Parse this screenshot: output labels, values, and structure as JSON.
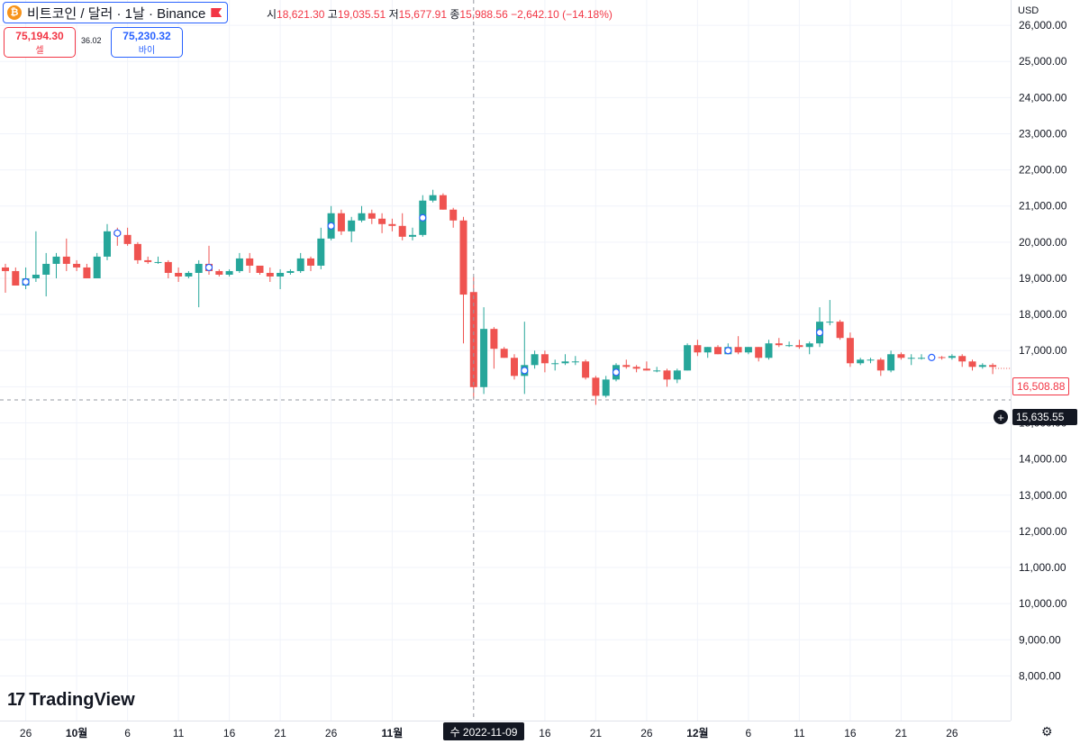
{
  "header": {
    "symbol": "비트코인 / 달러 · 1날 · Binance",
    "currency": "USD",
    "ohlc": {
      "open_label": "시",
      "open": "18,621.30",
      "high_label": "고",
      "high": "19,035.51",
      "low_label": "저",
      "low": "15,677.91",
      "close_label": "종",
      "close": "15,988.56",
      "change": "−2,642.10 (−14.18%)"
    }
  },
  "trade": {
    "sell_price": "75,194.30",
    "sell_label": "셀",
    "buy_price": "75,230.32",
    "buy_label": "바이",
    "spread": "36.02"
  },
  "branding": {
    "logo_mark": "17",
    "name": "TradingView"
  },
  "crosshair": {
    "date_label": "수 2022-11-09",
    "price_label": "15,635.55",
    "price_value": 15635.55,
    "date": "2022-11-09"
  },
  "last_price": {
    "label": "16,508.88",
    "value": 16508.88
  },
  "colors": {
    "up": "#26a69a",
    "down": "#ef5350",
    "grid": "#f0f3fa",
    "crosshair": "#9598a1",
    "marker": "#2962ff"
  },
  "chart_data": {
    "type": "candlestick",
    "ylim": [
      7600,
      26600
    ],
    "xlim": [
      "2022-09-24",
      "2022-12-31"
    ],
    "grid": true,
    "y_ticks": [
      "26,000.00",
      "25,000.00",
      "24,000.00",
      "23,000.00",
      "22,000.00",
      "21,000.00",
      "20,000.00",
      "19,000.00",
      "18,000.00",
      "17,000.00",
      "16,000.00",
      "15,000.00",
      "14,000.00",
      "13,000.00",
      "12,000.00",
      "11,000.00",
      "10,000.00",
      "9,000.00",
      "8,000.00"
    ],
    "y_tick_values": [
      26000,
      25000,
      24000,
      23000,
      22000,
      21000,
      20000,
      19000,
      18000,
      17000,
      16000,
      15000,
      14000,
      13000,
      12000,
      11000,
      10000,
      9000,
      8000
    ],
    "x_ticks": [
      {
        "label": "26",
        "date": "2022-09-26",
        "bold": false
      },
      {
        "label": "10월",
        "date": "2022-10-01",
        "bold": true
      },
      {
        "label": "6",
        "date": "2022-10-06",
        "bold": false
      },
      {
        "label": "11",
        "date": "2022-10-11",
        "bold": false
      },
      {
        "label": "16",
        "date": "2022-10-16",
        "bold": false
      },
      {
        "label": "21",
        "date": "2022-10-21",
        "bold": false
      },
      {
        "label": "26",
        "date": "2022-10-26",
        "bold": false
      },
      {
        "label": "11월",
        "date": "2022-11-01",
        "bold": true
      },
      {
        "label": "16",
        "date": "2022-11-16",
        "bold": false
      },
      {
        "label": "21",
        "date": "2022-11-21",
        "bold": false
      },
      {
        "label": "26",
        "date": "2022-11-26",
        "bold": false
      },
      {
        "label": "12월",
        "date": "2022-12-01",
        "bold": true
      },
      {
        "label": "6",
        "date": "2022-12-06",
        "bold": false
      },
      {
        "label": "11",
        "date": "2022-12-11",
        "bold": false
      },
      {
        "label": "16",
        "date": "2022-12-16",
        "bold": false
      },
      {
        "label": "21",
        "date": "2022-12-21",
        "bold": false
      },
      {
        "label": "26",
        "date": "2022-12-26",
        "bold": false
      }
    ],
    "marker_dates": [
      "2022-09-26",
      "2022-10-05",
      "2022-10-14",
      "2022-10-26",
      "2022-11-04",
      "2022-11-14",
      "2022-11-23",
      "2022-12-04",
      "2022-12-13",
      "2022-12-24"
    ],
    "candles": [
      {
        "date": "2022-09-24",
        "o": 19300,
        "h": 19400,
        "l": 18600,
        "c": 19200
      },
      {
        "date": "2022-09-25",
        "o": 19200,
        "h": 19300,
        "l": 18800,
        "c": 18800
      },
      {
        "date": "2022-09-26",
        "o": 18800,
        "h": 19300,
        "l": 18700,
        "c": 19000
      },
      {
        "date": "2022-09-27",
        "o": 19000,
        "h": 20300,
        "l": 18900,
        "c": 19100
      },
      {
        "date": "2022-09-28",
        "o": 19100,
        "h": 19700,
        "l": 18500,
        "c": 19400
      },
      {
        "date": "2022-09-29",
        "o": 19400,
        "h": 19700,
        "l": 19000,
        "c": 19600
      },
      {
        "date": "2022-09-30",
        "o": 19600,
        "h": 20100,
        "l": 19200,
        "c": 19400
      },
      {
        "date": "2022-10-01",
        "o": 19400,
        "h": 19500,
        "l": 19200,
        "c": 19300
      },
      {
        "date": "2022-10-02",
        "o": 19300,
        "h": 19400,
        "l": 19000,
        "c": 19000
      },
      {
        "date": "2022-10-03",
        "o": 19000,
        "h": 19700,
        "l": 19000,
        "c": 19600
      },
      {
        "date": "2022-10-04",
        "o": 19600,
        "h": 20500,
        "l": 19500,
        "c": 20300
      },
      {
        "date": "2022-10-05",
        "o": 20300,
        "h": 20400,
        "l": 19900,
        "c": 20200
      },
      {
        "date": "2022-10-06",
        "o": 20200,
        "h": 20400,
        "l": 19900,
        "c": 19950
      },
      {
        "date": "2022-10-07",
        "o": 19950,
        "h": 20000,
        "l": 19400,
        "c": 19500
      },
      {
        "date": "2022-10-08",
        "o": 19500,
        "h": 19600,
        "l": 19400,
        "c": 19450
      },
      {
        "date": "2022-10-09",
        "o": 19450,
        "h": 19600,
        "l": 19400,
        "c": 19450
      },
      {
        "date": "2022-10-10",
        "o": 19450,
        "h": 19500,
        "l": 19000,
        "c": 19150
      },
      {
        "date": "2022-10-11",
        "o": 19150,
        "h": 19300,
        "l": 18900,
        "c": 19050
      },
      {
        "date": "2022-10-12",
        "o": 19050,
        "h": 19200,
        "l": 19000,
        "c": 19150
      },
      {
        "date": "2022-10-13",
        "o": 19150,
        "h": 19500,
        "l": 18200,
        "c": 19400
      },
      {
        "date": "2022-10-14",
        "o": 19400,
        "h": 19900,
        "l": 19100,
        "c": 19200
      },
      {
        "date": "2022-10-15",
        "o": 19200,
        "h": 19250,
        "l": 19050,
        "c": 19100
      },
      {
        "date": "2022-10-16",
        "o": 19100,
        "h": 19250,
        "l": 19050,
        "c": 19200
      },
      {
        "date": "2022-10-17",
        "o": 19200,
        "h": 19700,
        "l": 19150,
        "c": 19550
      },
      {
        "date": "2022-10-18",
        "o": 19550,
        "h": 19700,
        "l": 19150,
        "c": 19350
      },
      {
        "date": "2022-10-19",
        "o": 19350,
        "h": 19350,
        "l": 19100,
        "c": 19150
      },
      {
        "date": "2022-10-20",
        "o": 19150,
        "h": 19300,
        "l": 18900,
        "c": 19050
      },
      {
        "date": "2022-10-21",
        "o": 19050,
        "h": 19250,
        "l": 18700,
        "c": 19150
      },
      {
        "date": "2022-10-22",
        "o": 19150,
        "h": 19250,
        "l": 19100,
        "c": 19200
      },
      {
        "date": "2022-10-23",
        "o": 19200,
        "h": 19700,
        "l": 19150,
        "c": 19550
      },
      {
        "date": "2022-10-24",
        "o": 19550,
        "h": 19600,
        "l": 19200,
        "c": 19350
      },
      {
        "date": "2022-10-25",
        "o": 19350,
        "h": 20400,
        "l": 19250,
        "c": 20100
      },
      {
        "date": "2022-10-26",
        "o": 20100,
        "h": 21000,
        "l": 20050,
        "c": 20800
      },
      {
        "date": "2022-10-27",
        "o": 20800,
        "h": 20900,
        "l": 20200,
        "c": 20300
      },
      {
        "date": "2022-10-28",
        "o": 20300,
        "h": 20700,
        "l": 20000,
        "c": 20600
      },
      {
        "date": "2022-10-29",
        "o": 20600,
        "h": 21000,
        "l": 20550,
        "c": 20800
      },
      {
        "date": "2022-10-30",
        "o": 20800,
        "h": 20900,
        "l": 20500,
        "c": 20650
      },
      {
        "date": "2022-10-31",
        "o": 20650,
        "h": 20800,
        "l": 20250,
        "c": 20500
      },
      {
        "date": "2022-11-01",
        "o": 20500,
        "h": 20650,
        "l": 20300,
        "c": 20450
      },
      {
        "date": "2022-11-02",
        "o": 20450,
        "h": 20800,
        "l": 20050,
        "c": 20150
      },
      {
        "date": "2022-11-03",
        "o": 20150,
        "h": 20400,
        "l": 20050,
        "c": 20200
      },
      {
        "date": "2022-11-04",
        "o": 20200,
        "h": 21300,
        "l": 20150,
        "c": 21150
      },
      {
        "date": "2022-11-05",
        "o": 21150,
        "h": 21450,
        "l": 21100,
        "c": 21300
      },
      {
        "date": "2022-11-06",
        "o": 21300,
        "h": 21350,
        "l": 20900,
        "c": 20900
      },
      {
        "date": "2022-11-07",
        "o": 20900,
        "h": 20950,
        "l": 20400,
        "c": 20600
      },
      {
        "date": "2022-11-08",
        "o": 20600,
        "h": 20700,
        "l": 17200,
        "c": 18550
      },
      {
        "date": "2022-11-09",
        "o": 18620,
        "h": 19040,
        "l": 15680,
        "c": 15990
      },
      {
        "date": "2022-11-10",
        "o": 15990,
        "h": 18200,
        "l": 15800,
        "c": 17600
      },
      {
        "date": "2022-11-11",
        "o": 17600,
        "h": 17650,
        "l": 16500,
        "c": 17050
      },
      {
        "date": "2022-11-12",
        "o": 17050,
        "h": 17100,
        "l": 16800,
        "c": 16800
      },
      {
        "date": "2022-11-13",
        "o": 16800,
        "h": 16900,
        "l": 16200,
        "c": 16300
      },
      {
        "date": "2022-11-14",
        "o": 16300,
        "h": 17800,
        "l": 15800,
        "c": 16600
      },
      {
        "date": "2022-11-15",
        "o": 16600,
        "h": 17000,
        "l": 16500,
        "c": 16900
      },
      {
        "date": "2022-11-16",
        "o": 16900,
        "h": 17000,
        "l": 16400,
        "c": 16650
      },
      {
        "date": "2022-11-17",
        "o": 16650,
        "h": 16750,
        "l": 16450,
        "c": 16650
      },
      {
        "date": "2022-11-18",
        "o": 16650,
        "h": 16900,
        "l": 16600,
        "c": 16700
      },
      {
        "date": "2022-11-19",
        "o": 16700,
        "h": 16850,
        "l": 16600,
        "c": 16700
      },
      {
        "date": "2022-11-20",
        "o": 16700,
        "h": 16750,
        "l": 16200,
        "c": 16250
      },
      {
        "date": "2022-11-21",
        "o": 16250,
        "h": 16300,
        "l": 15500,
        "c": 15750
      },
      {
        "date": "2022-11-22",
        "o": 15750,
        "h": 16300,
        "l": 15700,
        "c": 16200
      },
      {
        "date": "2022-11-23",
        "o": 16200,
        "h": 16650,
        "l": 16150,
        "c": 16600
      },
      {
        "date": "2022-11-24",
        "o": 16600,
        "h": 16750,
        "l": 16500,
        "c": 16550
      },
      {
        "date": "2022-11-25",
        "o": 16550,
        "h": 16600,
        "l": 16400,
        "c": 16500
      },
      {
        "date": "2022-11-26",
        "o": 16500,
        "h": 16700,
        "l": 16450,
        "c": 16450
      },
      {
        "date": "2022-11-27",
        "o": 16450,
        "h": 16550,
        "l": 16400,
        "c": 16450
      },
      {
        "date": "2022-11-28",
        "o": 16450,
        "h": 16500,
        "l": 16000,
        "c": 16200
      },
      {
        "date": "2022-11-29",
        "o": 16200,
        "h": 16500,
        "l": 16100,
        "c": 16450
      },
      {
        "date": "2022-11-30",
        "o": 16450,
        "h": 17200,
        "l": 16450,
        "c": 17150
      },
      {
        "date": "2022-12-01",
        "o": 17150,
        "h": 17300,
        "l": 16850,
        "c": 16950
      },
      {
        "date": "2022-12-02",
        "o": 16950,
        "h": 17100,
        "l": 16800,
        "c": 17100
      },
      {
        "date": "2022-12-03",
        "o": 17100,
        "h": 17150,
        "l": 16900,
        "c": 16900
      },
      {
        "date": "2022-12-04",
        "o": 16900,
        "h": 17200,
        "l": 16900,
        "c": 17100
      },
      {
        "date": "2022-12-05",
        "o": 17100,
        "h": 17400,
        "l": 16900,
        "c": 16950
      },
      {
        "date": "2022-12-06",
        "o": 16950,
        "h": 17100,
        "l": 16900,
        "c": 17100
      },
      {
        "date": "2022-12-07",
        "o": 17100,
        "h": 17100,
        "l": 16700,
        "c": 16800
      },
      {
        "date": "2022-12-08",
        "o": 16800,
        "h": 17300,
        "l": 16750,
        "c": 17200
      },
      {
        "date": "2022-12-09",
        "o": 17200,
        "h": 17350,
        "l": 17100,
        "c": 17150
      },
      {
        "date": "2022-12-10",
        "o": 17150,
        "h": 17250,
        "l": 17100,
        "c": 17150
      },
      {
        "date": "2022-12-11",
        "o": 17150,
        "h": 17300,
        "l": 17050,
        "c": 17100
      },
      {
        "date": "2022-12-12",
        "o": 17100,
        "h": 17250,
        "l": 16900,
        "c": 17200
      },
      {
        "date": "2022-12-13",
        "o": 17200,
        "h": 18200,
        "l": 17100,
        "c": 17800
      },
      {
        "date": "2022-12-14",
        "o": 17800,
        "h": 18400,
        "l": 17700,
        "c": 17800
      },
      {
        "date": "2022-12-15",
        "o": 17800,
        "h": 17850,
        "l": 17300,
        "c": 17350
      },
      {
        "date": "2022-12-16",
        "o": 17350,
        "h": 17500,
        "l": 16550,
        "c": 16650
      },
      {
        "date": "2022-12-17",
        "o": 16650,
        "h": 16800,
        "l": 16600,
        "c": 16750
      },
      {
        "date": "2022-12-18",
        "o": 16750,
        "h": 16800,
        "l": 16650,
        "c": 16750
      },
      {
        "date": "2022-12-19",
        "o": 16750,
        "h": 16800,
        "l": 16300,
        "c": 16450
      },
      {
        "date": "2022-12-20",
        "o": 16450,
        "h": 17000,
        "l": 16400,
        "c": 16900
      },
      {
        "date": "2022-12-21",
        "o": 16900,
        "h": 16950,
        "l": 16750,
        "c": 16800
      },
      {
        "date": "2022-12-22",
        "o": 16800,
        "h": 16900,
        "l": 16600,
        "c": 16800
      },
      {
        "date": "2022-12-23",
        "o": 16800,
        "h": 16900,
        "l": 16750,
        "c": 16800
      },
      {
        "date": "2022-12-24",
        "o": 16800,
        "h": 16850,
        "l": 16800,
        "c": 16820
      },
      {
        "date": "2022-12-25",
        "o": 16820,
        "h": 16850,
        "l": 16750,
        "c": 16800
      },
      {
        "date": "2022-12-26",
        "o": 16800,
        "h": 16900,
        "l": 16750,
        "c": 16850
      },
      {
        "date": "2022-12-27",
        "o": 16850,
        "h": 16900,
        "l": 16550,
        "c": 16700
      },
      {
        "date": "2022-12-28",
        "o": 16700,
        "h": 16750,
        "l": 16450,
        "c": 16550
      },
      {
        "date": "2022-12-29",
        "o": 16550,
        "h": 16650,
        "l": 16500,
        "c": 16600
      },
      {
        "date": "2022-12-30",
        "o": 16600,
        "h": 16650,
        "l": 16350,
        "c": 16550
      }
    ]
  }
}
